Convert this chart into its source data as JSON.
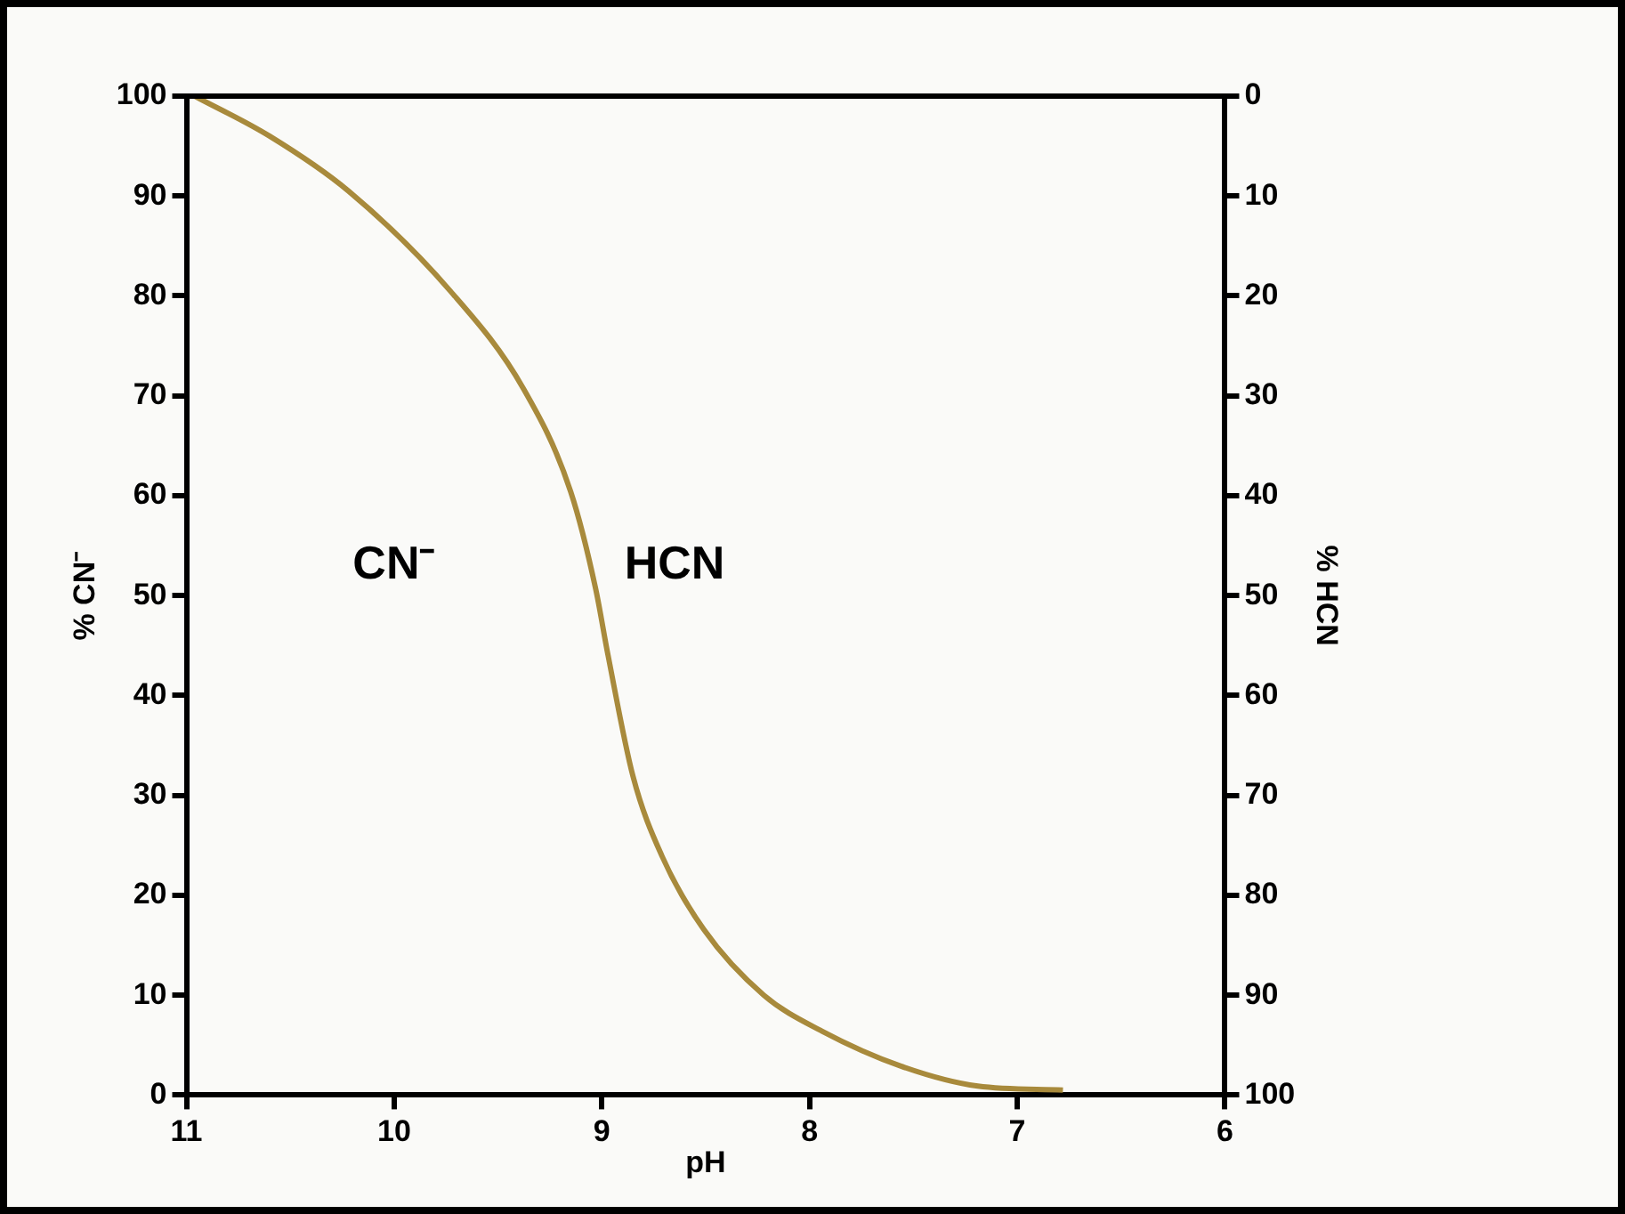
{
  "chart_data": {
    "type": "line",
    "xlabel": "pH",
    "ylabel": "% CN⁻",
    "y2label": "% HCN",
    "x": [
      10.96,
      10.6,
      10.22,
      9.73,
      9.38,
      9.15,
      9.03,
      8.97,
      8.85,
      8.71,
      8.51,
      8.22,
      7.94,
      7.56,
      7.19,
      6.78
    ],
    "series": [
      {
        "color": "#a88a3c",
        "values": [
          100,
          96,
          90.5,
          80.5,
          70.8,
          60.4,
          50.7,
          44,
          31.9,
          23.9,
          16.6,
          10,
          6.4,
          2.9,
          0.9,
          0.5
        ]
      }
    ],
    "xlim": [
      11,
      6
    ],
    "xticks": [
      11,
      10,
      9,
      8,
      7,
      6
    ],
    "ylim": [
      0,
      100
    ],
    "yticks": [
      0,
      10,
      20,
      30,
      40,
      50,
      60,
      70,
      80,
      90,
      100
    ],
    "y2lim": [
      100,
      0
    ],
    "y2ticks": [
      0,
      10,
      20,
      30,
      40,
      50,
      60,
      70,
      80,
      90,
      100
    ],
    "annotations": [
      "CN⁻",
      "HCN"
    ],
    "grid": false,
    "legend": false,
    "marker": "none",
    "line_style": "solid"
  }
}
